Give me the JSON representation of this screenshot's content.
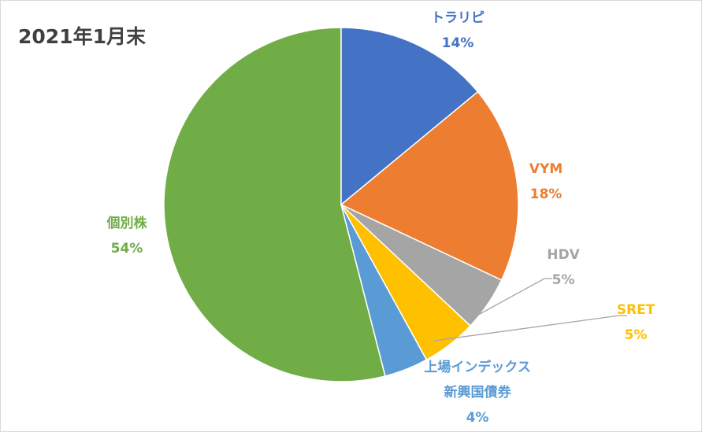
{
  "chart_data": {
    "type": "pie",
    "title": "2021年1月末",
    "categories": [
      "トラリピ",
      "VYM",
      "HDV",
      "SRET",
      "上場インデックス新興国債券",
      "個別株"
    ],
    "values": [
      14,
      18,
      5,
      5,
      4,
      54
    ],
    "value_labels": [
      "14%",
      "18%",
      "5%",
      "5%",
      "4%",
      "54%"
    ],
    "colors": [
      "#4472c4",
      "#ed7d31",
      "#a5a5a5",
      "#ffc000",
      "#5b9bd5",
      "#70ad47"
    ]
  }
}
